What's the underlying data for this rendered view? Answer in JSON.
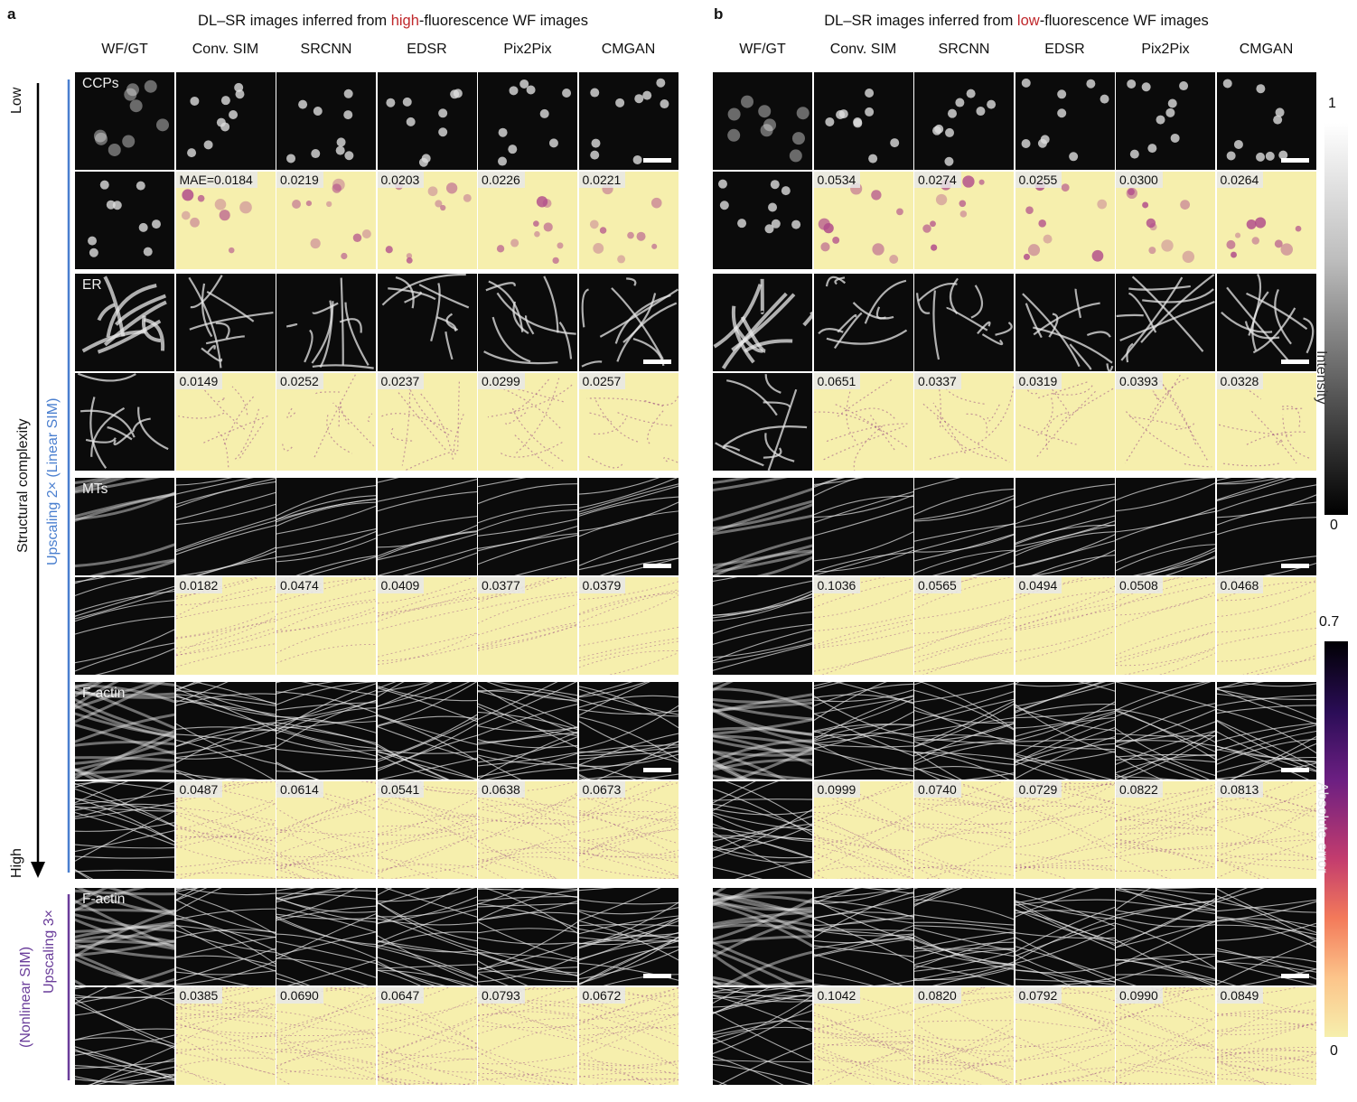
{
  "panel_a": {
    "letter": "a",
    "title_pre": "DL–SR images inferred from ",
    "title_hl": "high",
    "title_post": "-fluorescence WF images"
  },
  "panel_b": {
    "letter": "b",
    "title_pre": "DL–SR images inferred from ",
    "title_hl": "low",
    "title_post": "-fluorescence WF images"
  },
  "columns": [
    "WF/GT",
    "Conv. SIM",
    "SRCNN",
    "EDSR",
    "Pix2Pix",
    "CMGAN"
  ],
  "axis": {
    "low": "Low",
    "high": "High",
    "complexity": "Structural complexity",
    "linear": "Upscaling 2× (Linear SIM)",
    "nonlinear_1": "(Nonlinear SIM)",
    "nonlinear_2": "Upscaling 3×"
  },
  "structures": [
    {
      "label": "CCPs",
      "mae_a": [
        "MAE=0.0184",
        "0.0219",
        "0.0203",
        "0.0226",
        "0.0221"
      ],
      "mae_b": [
        "0.0534",
        "0.0274",
        "0.0255",
        "0.0300",
        "0.0264"
      ]
    },
    {
      "label": "ER",
      "mae_a": [
        "0.0149",
        "0.0252",
        "0.0237",
        "0.0299",
        "0.0257"
      ],
      "mae_b": [
        "0.0651",
        "0.0337",
        "0.0319",
        "0.0393",
        "0.0328"
      ]
    },
    {
      "label": "MTs",
      "mae_a": [
        "0.0182",
        "0.0474",
        "0.0409",
        "0.0377",
        "0.0379"
      ],
      "mae_b": [
        "0.1036",
        "0.0565",
        "0.0494",
        "0.0508",
        "0.0468"
      ]
    },
    {
      "label": "F-actin",
      "mae_a": [
        "0.0487",
        "0.0614",
        "0.0541",
        "0.0638",
        "0.0673"
      ],
      "mae_b": [
        "0.0999",
        "0.0740",
        "0.0729",
        "0.0822",
        "0.0813"
      ]
    },
    {
      "label": "F-actin",
      "mae_a": [
        "0.0385",
        "0.0690",
        "0.0647",
        "0.0793",
        "0.0672"
      ],
      "mae_b": [
        "0.1042",
        "0.0820",
        "0.0792",
        "0.0990",
        "0.0849"
      ]
    }
  ],
  "colorbar_intensity": {
    "label": "Intensity",
    "max": "1",
    "min": "0"
  },
  "colorbar_error": {
    "label": "Absolute error",
    "max": "0.7",
    "min": "0"
  },
  "colors": {
    "linear_bar": "#4a7fcf",
    "nonlinear_bar": "#6a3d9a",
    "highlight": "#c0282c",
    "error_bg": "#f6efad"
  }
}
